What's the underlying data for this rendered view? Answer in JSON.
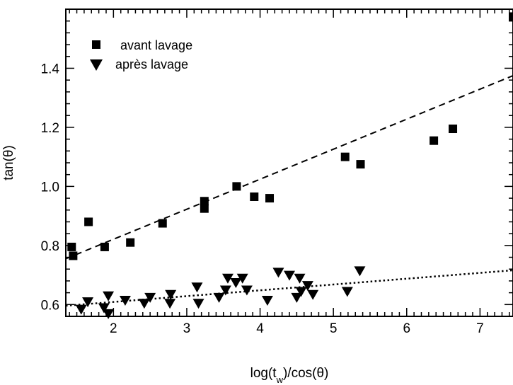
{
  "chart_data": {
    "type": "scatter",
    "xlabel": "log(t_w)/cos(θ)",
    "ylabel": "tan(θ)",
    "xlim": [
      1.35,
      7.45
    ],
    "ylim": [
      0.56,
      1.6
    ],
    "xticks": [
      2,
      3,
      4,
      5,
      6,
      7
    ],
    "yticks": [
      0.6,
      0.8,
      1.0,
      1.2,
      1.4
    ],
    "xtick_labels": [
      "2",
      "3",
      "4",
      "5",
      "6",
      "7"
    ],
    "ytick_labels": [
      "0.6",
      "0.8",
      "1.0",
      "1.2",
      "1.4"
    ],
    "grid": false,
    "legend_position": "top-left",
    "series": [
      {
        "name": "avant lavage",
        "marker": "square",
        "color": "#000000",
        "points": [
          [
            1.43,
            0.795
          ],
          [
            1.45,
            0.765
          ],
          [
            1.66,
            0.88
          ],
          [
            1.88,
            0.795
          ],
          [
            2.23,
            0.81
          ],
          [
            2.67,
            0.875
          ],
          [
            3.24,
            0.95
          ],
          [
            3.24,
            0.925
          ],
          [
            3.68,
            1.0
          ],
          [
            3.92,
            0.965
          ],
          [
            4.13,
            0.96
          ],
          [
            5.16,
            1.1
          ],
          [
            5.37,
            1.075
          ],
          [
            6.37,
            1.155
          ],
          [
            6.63,
            1.195
          ],
          [
            7.45,
            1.575
          ]
        ]
      },
      {
        "name": "après lavage",
        "marker": "triangle-down",
        "color": "#000000",
        "points": [
          [
            1.56,
            0.585
          ],
          [
            1.65,
            0.61
          ],
          [
            1.87,
            0.59
          ],
          [
            1.93,
            0.63
          ],
          [
            1.93,
            0.57
          ],
          [
            2.16,
            0.615
          ],
          [
            2.42,
            0.605
          ],
          [
            2.5,
            0.625
          ],
          [
            2.77,
            0.605
          ],
          [
            2.78,
            0.635
          ],
          [
            3.14,
            0.66
          ],
          [
            3.16,
            0.605
          ],
          [
            3.44,
            0.625
          ],
          [
            3.53,
            0.65
          ],
          [
            3.56,
            0.69
          ],
          [
            3.67,
            0.675
          ],
          [
            3.76,
            0.69
          ],
          [
            3.82,
            0.65
          ],
          [
            4.1,
            0.615
          ],
          [
            4.25,
            0.71
          ],
          [
            4.4,
            0.7
          ],
          [
            4.5,
            0.625
          ],
          [
            4.54,
            0.69
          ],
          [
            4.56,
            0.645
          ],
          [
            4.65,
            0.665
          ],
          [
            4.72,
            0.635
          ],
          [
            5.19,
            0.645
          ],
          [
            5.36,
            0.715
          ]
        ]
      }
    ],
    "fits": [
      {
        "series": "avant lavage",
        "style": "dashed",
        "x": [
          1.35,
          7.45
        ],
        "y": [
          0.755,
          1.375
        ]
      },
      {
        "series": "après lavage",
        "style": "dotted",
        "x": [
          1.35,
          7.45
        ],
        "y": [
          0.596,
          0.716
        ]
      }
    ]
  }
}
